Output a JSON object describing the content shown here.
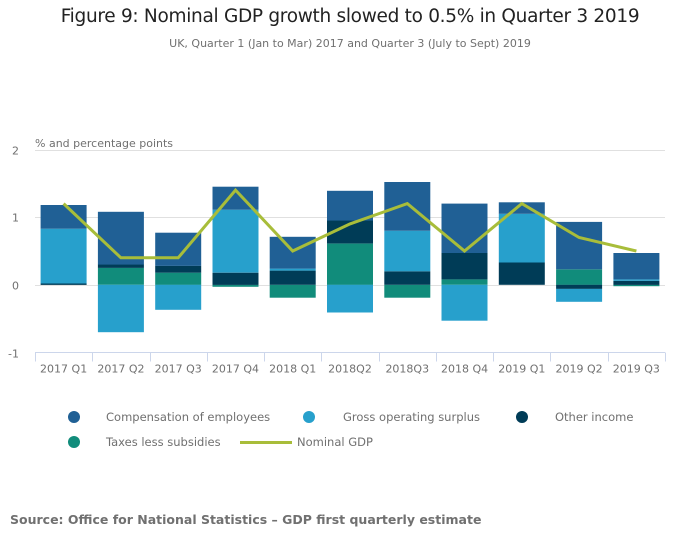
{
  "colors": {
    "compensation": "#206095",
    "gos": "#27a0cc",
    "other": "#003c57",
    "taxes": "#118c7b",
    "nominal": "#a8bd3a",
    "grid": "#e0e0e0",
    "axis": "#ccd6eb"
  },
  "chart_data": {
    "type": "bar",
    "stacked": true,
    "title": "Figure 9: Nominal GDP growth slowed to 0.5% in Quarter 3 2019",
    "subtitle": "UK, Quarter 1 (Jan to Mar) 2017 and Quarter 3 (July to Sept) 2019",
    "xlabel": "",
    "ylabel": "% and percentage points",
    "ylim": [
      -1,
      2
    ],
    "yticks": [
      "2",
      "1",
      "0",
      "-1"
    ],
    "ytick_values": [
      2,
      1,
      0,
      -1
    ],
    "grid": true,
    "legend_position": "bottom",
    "categories": [
      "2017 Q1",
      "2017 Q2",
      "2017 Q3",
      "2017 Q4",
      "2018 Q1",
      "2018Q2",
      "2018Q3",
      "2018 Q4",
      "2019 Q1",
      "2019 Q2",
      "2019 Q3"
    ],
    "series": [
      {
        "name": "Compensation of employees",
        "key": "compensation",
        "type": "bar",
        "values": [
          0.35,
          0.78,
          0.49,
          0.34,
          0.47,
          0.44,
          0.72,
          0.73,
          0.17,
          0.7,
          0.39
        ]
      },
      {
        "name": "Gross operating surplus",
        "key": "gos",
        "type": "bar",
        "values": [
          0.81,
          -0.7,
          -0.37,
          0.93,
          0.03,
          -0.41,
          0.6,
          -0.53,
          0.72,
          -0.19,
          0.02
        ]
      },
      {
        "name": "Other income",
        "key": "other",
        "type": "bar",
        "values": [
          0.02,
          0.05,
          0.1,
          0.18,
          0.21,
          0.34,
          0.2,
          0.39,
          0.33,
          -0.06,
          0.06
        ]
      },
      {
        "name": "Taxes less subsidies",
        "key": "taxes",
        "type": "bar",
        "values": [
          0.0,
          0.25,
          0.18,
          -0.03,
          -0.19,
          0.61,
          -0.19,
          0.08,
          0.0,
          0.23,
          -0.02
        ]
      },
      {
        "name": "Nominal GDP",
        "key": "nominal",
        "type": "line",
        "values": [
          1.2,
          0.4,
          0.4,
          1.4,
          0.5,
          0.9,
          1.2,
          0.5,
          1.2,
          0.7,
          0.5
        ]
      }
    ]
  },
  "legend": [
    {
      "label": "Compensation of employees",
      "key": "compensation",
      "symbol": "dot"
    },
    {
      "label": "Gross operating surplus",
      "key": "gos",
      "symbol": "dot"
    },
    {
      "label": "Other income",
      "key": "other",
      "symbol": "dot"
    },
    {
      "label": "Taxes less subsidies",
      "key": "taxes",
      "symbol": "dot"
    },
    {
      "label": "Nominal GDP",
      "key": "nominal",
      "symbol": "line"
    }
  ],
  "source": "Source: Office for National Statistics – GDP first quarterly estimate"
}
